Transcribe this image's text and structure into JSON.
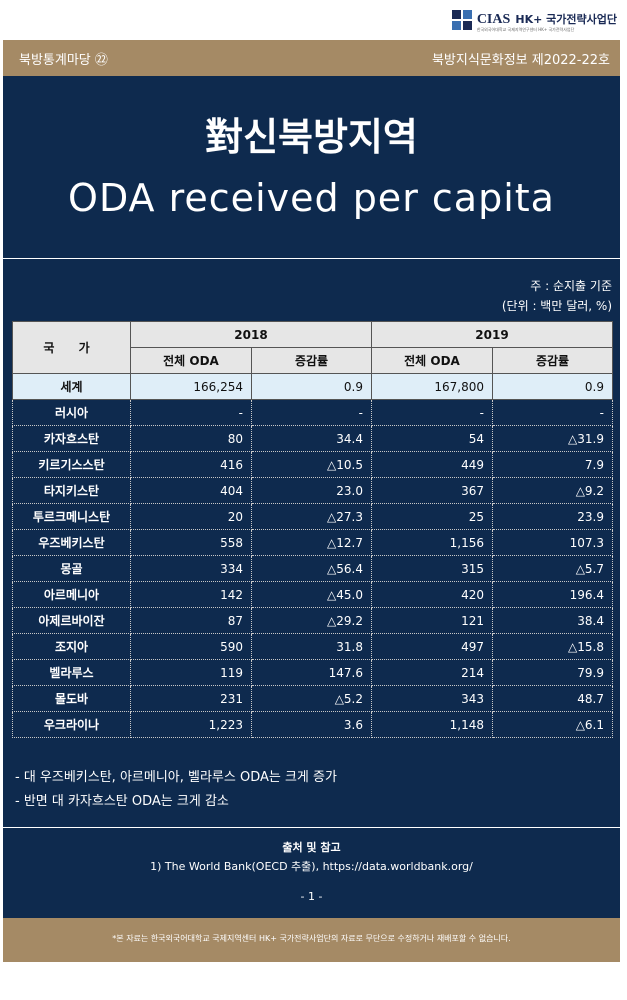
{
  "logo": {
    "name": "CIAS",
    "org": "HK+ 국가전략사업단",
    "sub": "한국외국어대학교 국제지역연구센터 HK+ 국가전략사업단"
  },
  "header": {
    "series": "북방통계마당 ㉒",
    "issue": "북방지식문화정보 제2022-22호"
  },
  "title": {
    "kr": "對신북방지역",
    "en": "ODA received per capita"
  },
  "notes": {
    "basis": "주 : 순지출 기준",
    "unit": "(단위 : 백만 달러, %)"
  },
  "table": {
    "country_header": "국 가",
    "years": [
      "2018",
      "2019"
    ],
    "sub_headers": [
      "전체 ODA",
      "증감률",
      "전체 ODA",
      "증감률"
    ],
    "world": {
      "name": "세계",
      "v": [
        "166,254",
        "0.9",
        "167,800",
        "0.9"
      ]
    },
    "rows": [
      {
        "name": "러시아",
        "v": [
          "-",
          "-",
          "-",
          "-"
        ]
      },
      {
        "name": "카자흐스탄",
        "v": [
          "80",
          "34.4",
          "54",
          "△31.9"
        ]
      },
      {
        "name": "키르기스스탄",
        "v": [
          "416",
          "△10.5",
          "449",
          "7.9"
        ]
      },
      {
        "name": "타지키스탄",
        "v": [
          "404",
          "23.0",
          "367",
          "△9.2"
        ]
      },
      {
        "name": "투르크메니스탄",
        "v": [
          "20",
          "△27.3",
          "25",
          "23.9"
        ]
      },
      {
        "name": "우즈베키스탄",
        "v": [
          "558",
          "△12.7",
          "1,156",
          "107.3"
        ]
      },
      {
        "name": "몽골",
        "v": [
          "334",
          "△56.4",
          "315",
          "△5.7"
        ]
      },
      {
        "name": "아르메니아",
        "v": [
          "142",
          "△45.0",
          "420",
          "196.4"
        ]
      },
      {
        "name": "아제르바이잔",
        "v": [
          "87",
          "△29.2",
          "121",
          "38.4"
        ]
      },
      {
        "name": "조지아",
        "v": [
          "590",
          "31.8",
          "497",
          "△15.8"
        ]
      },
      {
        "name": "벨라루스",
        "v": [
          "119",
          "147.6",
          "214",
          "79.9"
        ]
      },
      {
        "name": "몰도바",
        "v": [
          "231",
          "△5.2",
          "343",
          "48.7"
        ]
      },
      {
        "name": "우크라이나",
        "v": [
          "1,223",
          "3.6",
          "1,148",
          "△6.1"
        ]
      }
    ]
  },
  "bullets": [
    "- 대 우즈베키스탄, 아르메니아, 벨라루스 ODA는 크게 증가",
    "- 반면 대 카자흐스탄 ODA는 크게 감소"
  ],
  "source": {
    "title": "출처 및 참고",
    "text": "1) The World Bank(OECD 추출), https://data.worldbank.org/",
    "page": "- 1 -"
  },
  "disclaimer": "*본 자료는 한국외국어대학교 국제지역센터 HK+ 국가전략사업단의 자료로 무단으로 수정하거나 재배포할 수 없습니다.",
  "colors": {
    "navy": "#0e2a4e",
    "gold": "#a58a65",
    "world_row": "#dfeef8"
  }
}
